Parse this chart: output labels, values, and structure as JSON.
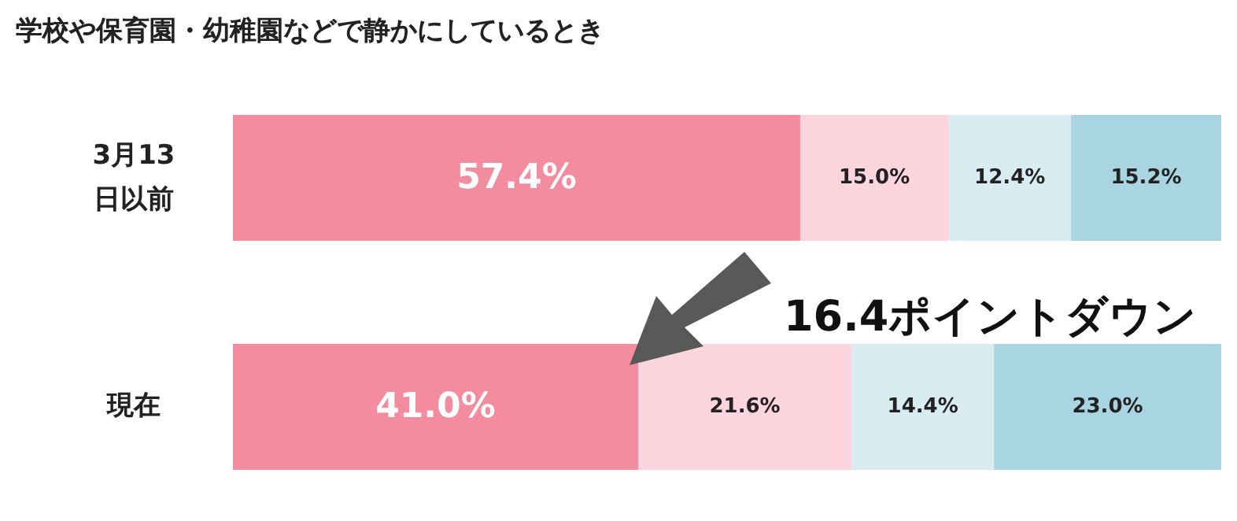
{
  "chart_data": {
    "type": "bar",
    "orientation": "horizontal",
    "stacked": true,
    "title": "学校や保育園・幼稚園などで静かにしているとき",
    "categories": [
      "3月13日以前",
      "現在"
    ],
    "series": [
      {
        "color": "#f48ca0",
        "values": [
          57.4,
          41.0
        ],
        "value_labels": [
          "57.4%",
          "41.0%"
        ]
      },
      {
        "color": "#fcd5de",
        "values": [
          15.0,
          21.6
        ],
        "value_labels": [
          "15.0%",
          "21.6%"
        ]
      },
      {
        "color": "#d8ecf1",
        "values": [
          12.4,
          14.4
        ],
        "value_labels": [
          "12.4%",
          "14.4%"
        ]
      },
      {
        "color": "#a9d5e2",
        "values": [
          15.2,
          23.0
        ],
        "value_labels": [
          "15.2%",
          "23.0%"
        ]
      }
    ],
    "annotations": [
      "16.4ポイントダウン"
    ]
  }
}
